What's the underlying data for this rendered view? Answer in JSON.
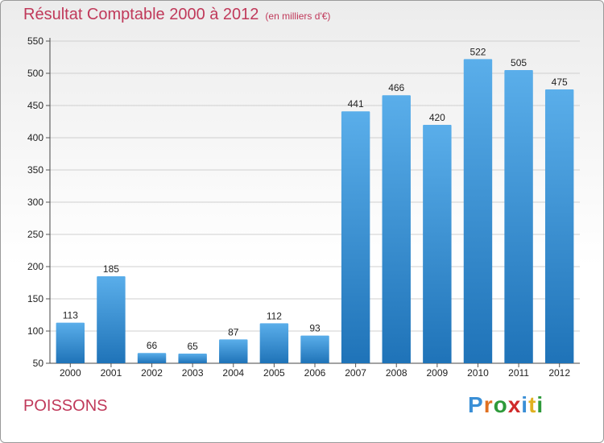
{
  "header": {
    "title": "Résultat Comptable 2000 à 2012",
    "subtitle": "(en milliers d'€)"
  },
  "footer": {
    "place": "POISSONS",
    "logo_text": "Proxiti",
    "logo_colors": [
      "#3a8fd6",
      "#e07020",
      "#2e9a3a",
      "#d02a2a",
      "#3a8fd6",
      "#e0b020",
      "#2e9a3a"
    ]
  },
  "colors": {
    "bar_top": "#5aaeea",
    "bar_bottom": "#1f73b8",
    "text_accent": "#c0395a"
  },
  "chart_data": {
    "type": "bar",
    "categories": [
      "2000",
      "2001",
      "2002",
      "2003",
      "2004",
      "2005",
      "2006",
      "2007",
      "2008",
      "2009",
      "2010",
      "2011",
      "2012"
    ],
    "values": [
      113,
      185,
      66,
      65,
      87,
      112,
      93,
      441,
      466,
      420,
      522,
      505,
      475
    ],
    "value_labels": [
      "113",
      "185",
      "66",
      "65",
      "87",
      "112",
      "93",
      "441",
      "466",
      "420",
      "522",
      "505",
      "475"
    ],
    "yticks": [
      "50",
      "100",
      "150",
      "200",
      "250",
      "300",
      "350",
      "400",
      "450",
      "500",
      "550"
    ],
    "ylim": [
      50,
      550
    ],
    "grid": true,
    "xlabel": "",
    "ylabel": ""
  }
}
